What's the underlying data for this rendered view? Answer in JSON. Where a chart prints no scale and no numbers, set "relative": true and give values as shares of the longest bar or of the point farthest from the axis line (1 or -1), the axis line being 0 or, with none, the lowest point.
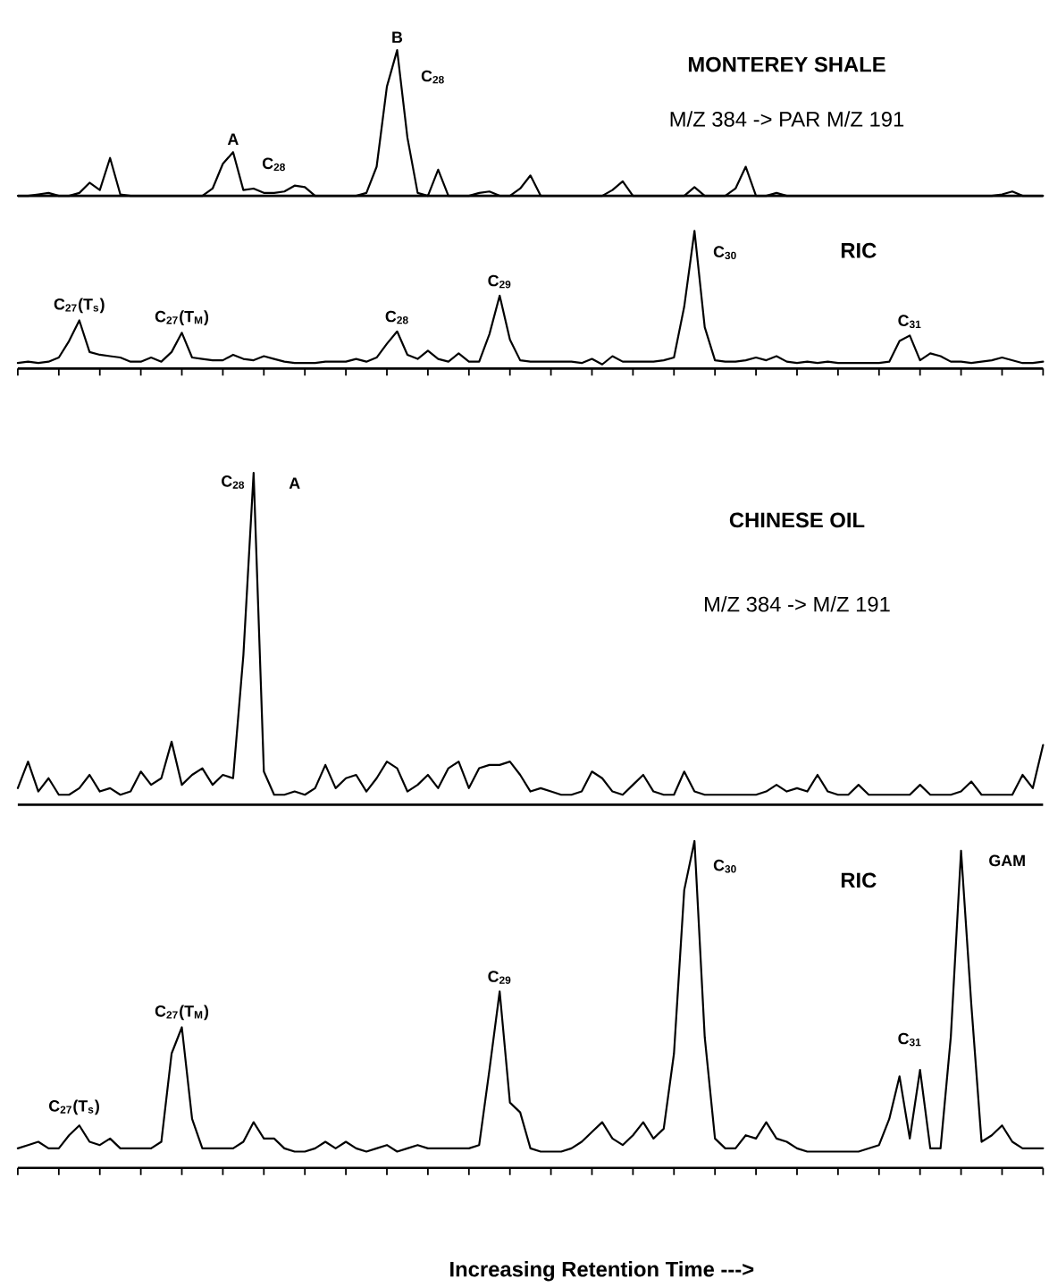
{
  "chart_data": [
    {
      "type": "line",
      "relative": true,
      "title": "MONTEREY SHALE",
      "subtitle": "M/Z 384 -> PAR M/Z 191",
      "categories": [
        null,
        null,
        null,
        null,
        null,
        null,
        null,
        null,
        null,
        null,
        null,
        null,
        null,
        null,
        null,
        null,
        null,
        null,
        null,
        null,
        null,
        null,
        null,
        null,
        null,
        null,
        null,
        null,
        null,
        null,
        null,
        null,
        null,
        null,
        null,
        null,
        null,
        null,
        null,
        null,
        null,
        null,
        null,
        null,
        null,
        null,
        null,
        null,
        null,
        null,
        null,
        null,
        null,
        null,
        null,
        null,
        null,
        null,
        null,
        null,
        null,
        null,
        null,
        null,
        null,
        null,
        null,
        null,
        null,
        null,
        null,
        null,
        null,
        null,
        null,
        null,
        null,
        null,
        null,
        null,
        null,
        null,
        null,
        null,
        null,
        null,
        null,
        null,
        null,
        null,
        null,
        null,
        null,
        null,
        null,
        null,
        null,
        null,
        null,
        null,
        null
      ],
      "series": [
        {
          "color": "#000000",
          "values": [
            0,
            0,
            0.01,
            0.02,
            0,
            0,
            0.02,
            0.09,
            0.04,
            0.26,
            0.01,
            0,
            0,
            0,
            0,
            0,
            0,
            0,
            0,
            0.05,
            0.22,
            0.3,
            0.04,
            0.05,
            0.02,
            0.02,
            0.03,
            0.07,
            0.06,
            0,
            0,
            0,
            0,
            0,
            0.02,
            0.2,
            0.75,
            1,
            0.4,
            0.02,
            0,
            0.18,
            0,
            0,
            0,
            0.02,
            0.03,
            0,
            0,
            0.05,
            0.14,
            0,
            0,
            0,
            0,
            0,
            0,
            0,
            0.04,
            0.1,
            0,
            0,
            0,
            0,
            0,
            0,
            0.06,
            0,
            0,
            0,
            0.05,
            0.2,
            0,
            0,
            0.02,
            0,
            0,
            0,
            0,
            0,
            0,
            0,
            0,
            0,
            0,
            0,
            0,
            0,
            0,
            0,
            0,
            0,
            0,
            0,
            0,
            0,
            0.01,
            0.03,
            0,
            0,
            0
          ]
        }
      ],
      "annotations": [
        "A",
        "C$_{28}$",
        "B",
        "C$_{28}$"
      ]
    },
    {
      "type": "line",
      "relative": true,
      "title": "RIC",
      "categories": [
        null,
        null,
        null,
        null,
        null,
        null,
        null,
        null,
        null,
        null,
        null,
        null,
        null,
        null,
        null,
        null,
        null,
        null,
        null,
        null,
        null,
        null,
        null,
        null,
        null,
        null,
        null,
        null,
        null,
        null,
        null,
        null,
        null,
        null,
        null,
        null,
        null,
        null,
        null,
        null,
        null,
        null,
        null,
        null,
        null,
        null,
        null,
        null,
        null,
        null,
        null,
        null,
        null,
        null,
        null,
        null,
        null,
        null,
        null,
        null,
        null,
        null,
        null,
        null,
        null,
        null,
        null,
        null,
        null,
        null,
        null,
        null,
        null,
        null,
        null,
        null,
        null,
        null,
        null,
        null,
        null,
        null,
        null,
        null,
        null,
        null,
        null,
        null,
        null,
        null,
        null,
        null,
        null,
        null,
        null,
        null,
        null,
        null,
        null,
        null,
        null
      ],
      "series": [
        {
          "color": "#000000",
          "values": [
            0.04,
            0.05,
            0.04,
            0.05,
            0.08,
            0.2,
            0.35,
            0.12,
            0.1,
            0.09,
            0.08,
            0.05,
            0.05,
            0.08,
            0.05,
            0.12,
            0.26,
            0.08,
            0.07,
            0.06,
            0.06,
            0.1,
            0.07,
            0.06,
            0.09,
            0.07,
            0.05,
            0.04,
            0.04,
            0.04,
            0.05,
            0.05,
            0.05,
            0.07,
            0.05,
            0.08,
            0.18,
            0.27,
            0.1,
            0.07,
            0.13,
            0.07,
            0.05,
            0.11,
            0.05,
            0.05,
            0.25,
            0.53,
            0.21,
            0.06,
            0.05,
            0.05,
            0.05,
            0.05,
            0.05,
            0.04,
            0.07,
            0.03,
            0.09,
            0.05,
            0.05,
            0.05,
            0.05,
            0.06,
            0.08,
            0.45,
            1.0,
            0.3,
            0.06,
            0.05,
            0.05,
            0.06,
            0.08,
            0.06,
            0.09,
            0.05,
            0.04,
            0.05,
            0.04,
            0.05,
            0.04,
            0.04,
            0.04,
            0.04,
            0.04,
            0.05,
            0.2,
            0.24,
            0.06,
            0.11,
            0.09,
            0.05,
            0.05,
            0.04,
            0.05,
            0.06,
            0.08,
            0.06,
            0.04,
            0.04,
            0.05
          ]
        }
      ],
      "annotations": [
        "C$_{27}$(T$_{s}$)",
        "C$_{27}$(T$_{M}$)",
        "C$_{28}$",
        "C$_{29}$",
        "C$_{30}$",
        "C$_{31}$"
      ]
    },
    {
      "type": "line",
      "relative": true,
      "title": "CHINESE OIL",
      "subtitle": "M/Z 384 -> M/Z 191",
      "categories": [
        null,
        null,
        null,
        null,
        null,
        null,
        null,
        null,
        null,
        null,
        null,
        null,
        null,
        null,
        null,
        null,
        null,
        null,
        null,
        null,
        null,
        null,
        null,
        null,
        null,
        null,
        null,
        null,
        null,
        null,
        null,
        null,
        null,
        null,
        null,
        null,
        null,
        null,
        null,
        null,
        null,
        null,
        null,
        null,
        null,
        null,
        null,
        null,
        null,
        null,
        null,
        null,
        null,
        null,
        null,
        null,
        null,
        null,
        null,
        null,
        null,
        null,
        null,
        null,
        null,
        null,
        null,
        null,
        null,
        null,
        null,
        null,
        null,
        null,
        null,
        null,
        null,
        null,
        null,
        null,
        null,
        null,
        null,
        null,
        null,
        null,
        null,
        null,
        null,
        null,
        null,
        null,
        null,
        null,
        null,
        null,
        null,
        null,
        null,
        null,
        null
      ],
      "series": [
        {
          "color": "#000000",
          "values": [
            0.05,
            0.13,
            0.04,
            0.08,
            0.03,
            0.03,
            0.05,
            0.09,
            0.04,
            0.05,
            0.03,
            0.04,
            0.1,
            0.06,
            0.08,
            0.19,
            0.06,
            0.09,
            0.11,
            0.06,
            0.09,
            0.08,
            0.45,
            1.0,
            0.1,
            0.03,
            0.03,
            0.04,
            0.03,
            0.05,
            0.12,
            0.05,
            0.08,
            0.09,
            0.04,
            0.08,
            0.13,
            0.11,
            0.04,
            0.06,
            0.09,
            0.05,
            0.11,
            0.13,
            0.05,
            0.11,
            0.12,
            0.12,
            0.13,
            0.09,
            0.04,
            0.05,
            0.04,
            0.03,
            0.03,
            0.04,
            0.1,
            0.08,
            0.04,
            0.03,
            0.06,
            0.09,
            0.04,
            0.03,
            0.03,
            0.1,
            0.04,
            0.03,
            0.03,
            0.03,
            0.03,
            0.03,
            0.03,
            0.04,
            0.06,
            0.04,
            0.05,
            0.04,
            0.09,
            0.04,
            0.03,
            0.03,
            0.06,
            0.03,
            0.03,
            0.03,
            0.03,
            0.03,
            0.06,
            0.03,
            0.03,
            0.03,
            0.04,
            0.07,
            0.03,
            0.03,
            0.03,
            0.03,
            0.09,
            0.05,
            0.18
          ]
        }
      ],
      "annotations": [
        "C$_{28}$",
        "A"
      ]
    },
    {
      "type": "line",
      "relative": true,
      "title": "RIC",
      "xlabel": "Increasing Retention Time --->",
      "categories": [
        null,
        null,
        null,
        null,
        null,
        null,
        null,
        null,
        null,
        null,
        null,
        null,
        null,
        null,
        null,
        null,
        null,
        null,
        null,
        null,
        null,
        null,
        null,
        null,
        null,
        null,
        null,
        null,
        null,
        null,
        null,
        null,
        null,
        null,
        null,
        null,
        null,
        null,
        null,
        null,
        null,
        null,
        null,
        null,
        null,
        null,
        null,
        null,
        null,
        null,
        null,
        null,
        null,
        null,
        null,
        null,
        null,
        null,
        null,
        null,
        null,
        null,
        null,
        null,
        null,
        null,
        null,
        null,
        null,
        null,
        null,
        null,
        null,
        null,
        null,
        null,
        null,
        null,
        null,
        null,
        null,
        null,
        null,
        null,
        null,
        null,
        null,
        null,
        null,
        null,
        null,
        null,
        null,
        null,
        null,
        null,
        null,
        null,
        null,
        null,
        null
      ],
      "series": [
        {
          "color": "#000000",
          "values": [
            0.06,
            0.07,
            0.08,
            0.06,
            0.06,
            0.1,
            0.13,
            0.08,
            0.07,
            0.09,
            0.06,
            0.06,
            0.06,
            0.06,
            0.08,
            0.35,
            0.43,
            0.15,
            0.06,
            0.06,
            0.06,
            0.06,
            0.08,
            0.14,
            0.09,
            0.09,
            0.06,
            0.05,
            0.05,
            0.06,
            0.08,
            0.06,
            0.08,
            0.06,
            0.05,
            0.06,
            0.07,
            0.05,
            0.06,
            0.07,
            0.06,
            0.06,
            0.06,
            0.06,
            0.06,
            0.07,
            0.3,
            0.54,
            0.2,
            0.17,
            0.06,
            0.05,
            0.05,
            0.05,
            0.06,
            0.08,
            0.11,
            0.14,
            0.09,
            0.07,
            0.1,
            0.14,
            0.09,
            0.12,
            0.35,
            0.85,
            1.0,
            0.4,
            0.09,
            0.06,
            0.06,
            0.1,
            0.09,
            0.14,
            0.09,
            0.08,
            0.06,
            0.05,
            0.05,
            0.05,
            0.05,
            0.05,
            0.05,
            0.06,
            0.07,
            0.15,
            0.28,
            0.09,
            0.3,
            0.06,
            0.06,
            0.4,
            0.97,
            0.5,
            0.08,
            0.1,
            0.13,
            0.08,
            0.06,
            0.06,
            0.06
          ]
        }
      ],
      "annotations": [
        "C$_{27}$(T$_{s}$)",
        "C$_{27}$(T$_{M}$)",
        "C$_{29}$",
        "C$_{30}$",
        "C$_{31}$",
        "GAM"
      ]
    }
  ]
}
